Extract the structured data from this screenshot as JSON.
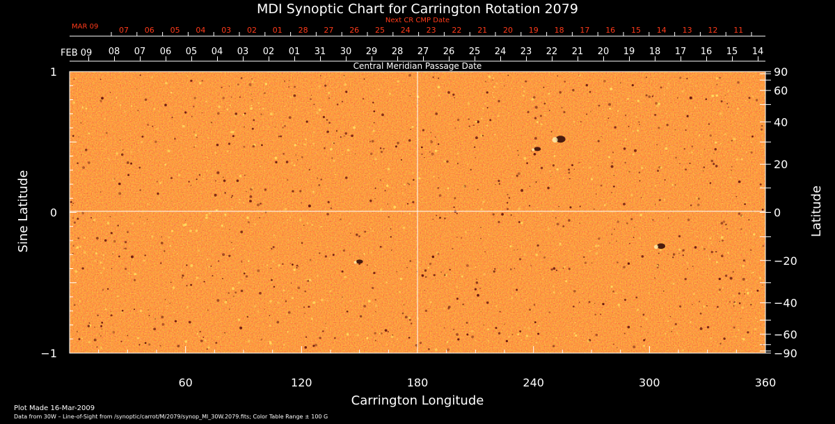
{
  "chart_data": {
    "type": "heatmap",
    "title": "MDI Synoptic Chart for Carrington Rotation 2079",
    "xlabel": "Carrington Longitude",
    "ylabel_left": "Sine Latitude",
    "ylabel_right": "Latitude",
    "xlim": [
      0,
      360
    ],
    "ylim": [
      -1,
      1
    ],
    "x_ticks": [
      60,
      120,
      180,
      240,
      300,
      360
    ],
    "y_ticks_left": [
      {
        "v": -1,
        "label": "−1"
      },
      {
        "v": 0,
        "label": "0"
      },
      {
        "v": 1,
        "label": "1"
      }
    ],
    "y_ticks_right": [
      {
        "deg": 90,
        "label": "90"
      },
      {
        "deg": 60,
        "label": "60"
      },
      {
        "deg": 40,
        "label": "40"
      },
      {
        "deg": 20,
        "label": "20"
      },
      {
        "deg": 0,
        "label": "0"
      },
      {
        "deg": -20,
        "label": "−20"
      },
      {
        "deg": -40,
        "label": "−40"
      },
      {
        "deg": -60,
        "label": "−60"
      },
      {
        "deg": -90,
        "label": "−90"
      }
    ],
    "cmp_axis_title": "Central Meridian Passage Date",
    "cmp_start_label": "FEB 09",
    "cmp_dates": [
      "08",
      "07",
      "06",
      "05",
      "04",
      "03",
      "02",
      "01",
      "31",
      "30",
      "29",
      "28",
      "27",
      "26",
      "25",
      "24",
      "23",
      "22",
      "21",
      "20",
      "19",
      "18",
      "17",
      "16",
      "15",
      "14"
    ],
    "next_cr_title": "Next CR CMP Date",
    "next_cr_start_label": "MAR 09",
    "next_cr_dates": [
      "07",
      "06",
      "05",
      "04",
      "03",
      "02",
      "01",
      "28",
      "27",
      "26",
      "25",
      "24",
      "23",
      "22",
      "21",
      "20",
      "19",
      "18",
      "17",
      "16",
      "15",
      "14",
      "13",
      "12",
      "11"
    ],
    "color_table_range_gauss": 100,
    "colors": {
      "base": "#ff5a10",
      "dark": "#5a0a0a",
      "bright": "#ffe060",
      "next_cr_text": "#ff3a1a"
    }
  },
  "footer": {
    "plot_made": "Plot Made 16-Mar-2009",
    "data_source": "Data from 30W – Line-of-Sight from /synoptic/carrot/M/2079/synop_Ml_30W.2079.fits; Color Table Range ± 100 G"
  }
}
